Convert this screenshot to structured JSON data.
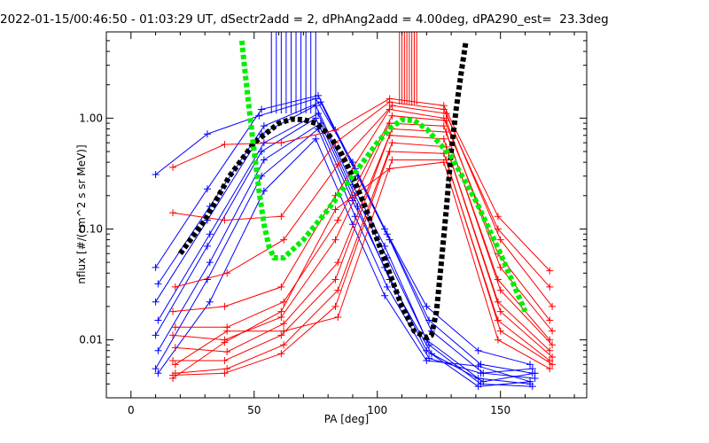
{
  "title": "2022-01-15/00:46:50 - 01:03:29 UT, dSectr2add = 2, dPhAng2add = 4.00deg, dPA290_est=  23.3deg",
  "chart_data": {
    "type": "line",
    "xlabel": "PA [deg]",
    "ylabel": "nflux [#/(cm^2 s sr MeV)]",
    "xlim": [
      -10,
      185
    ],
    "ylim": [
      0.003,
      6
    ],
    "yscale": "log",
    "x_ticks": [
      0,
      50,
      100,
      150
    ],
    "x_tick_labels": [
      "0",
      "50",
      "100",
      "150"
    ],
    "y_ticks": [
      0.01,
      0.1,
      1.0
    ],
    "y_tick_labels": [
      "0.01",
      "0.10",
      "1.00"
    ],
    "colors": {
      "blue": "#0000ff",
      "red": "#ff0000",
      "green": "#00ee00",
      "black": "#000000",
      "axes": "#000000"
    },
    "series": [
      {
        "color": "blue",
        "x": [
          10,
          31,
          52,
          75,
          90,
          103,
          120,
          141,
          162
        ],
        "y": [
          0.31,
          0.72,
          1.05,
          1.5,
          0.4,
          0.1,
          0.02,
          0.008,
          0.006
        ]
      },
      {
        "color": "blue",
        "x": [
          10,
          31,
          53,
          76,
          91,
          104,
          121,
          142,
          163
        ],
        "y": [
          0.045,
          0.23,
          1.2,
          1.6,
          0.35,
          0.09,
          0.015,
          0.006,
          0.005
        ]
      },
      {
        "color": "blue",
        "x": [
          11,
          32,
          54,
          77,
          92,
          105,
          122,
          143,
          164
        ],
        "y": [
          0.032,
          0.16,
          0.85,
          1.4,
          0.3,
          0.08,
          0.012,
          0.005,
          0.0045
        ]
      },
      {
        "color": "blue",
        "x": [
          10,
          31,
          53,
          75,
          90,
          103,
          120,
          141,
          162
        ],
        "y": [
          0.022,
          0.12,
          0.72,
          1.3,
          0.25,
          0.07,
          0.01,
          0.0045,
          0.004
        ]
      },
      {
        "color": "blue",
        "x": [
          11,
          32,
          54,
          76,
          91,
          104,
          121,
          142,
          163
        ],
        "y": [
          0.015,
          0.09,
          0.6,
          1.1,
          0.2,
          0.055,
          0.009,
          0.004,
          0.0038
        ]
      },
      {
        "color": "blue",
        "x": [
          10,
          31,
          53,
          75,
          90,
          103,
          120,
          141,
          162
        ],
        "y": [
          0.011,
          0.07,
          0.5,
          1.0,
          0.18,
          0.045,
          0.008,
          0.0038,
          0.0042
        ]
      },
      {
        "color": "blue",
        "x": [
          11,
          32,
          54,
          77,
          92,
          105,
          122,
          143,
          164
        ],
        "y": [
          0.008,
          0.05,
          0.42,
          0.9,
          0.16,
          0.035,
          0.0075,
          0.0042,
          0.005
        ]
      },
      {
        "color": "blue",
        "x": [
          10,
          31,
          53,
          76,
          91,
          104,
          121,
          142,
          163
        ],
        "y": [
          0.0055,
          0.035,
          0.3,
          0.8,
          0.13,
          0.03,
          0.0068,
          0.005,
          0.0055
        ]
      },
      {
        "color": "blue",
        "x": [
          11,
          32,
          54,
          75,
          90,
          103,
          120,
          141,
          162
        ],
        "y": [
          0.005,
          0.022,
          0.22,
          0.65,
          0.11,
          0.025,
          0.0065,
          0.0058,
          0.0042
        ]
      },
      {
        "color": "red",
        "x": [
          17,
          38,
          61,
          83,
          105,
          127,
          149,
          170
        ],
        "y": [
          0.36,
          0.58,
          0.6,
          0.78,
          1.5,
          1.3,
          0.13,
          0.042
        ]
      },
      {
        "color": "red",
        "x": [
          17,
          38,
          61,
          83,
          105,
          127,
          149,
          170
        ],
        "y": [
          0.14,
          0.12,
          0.13,
          0.6,
          1.4,
          1.2,
          0.1,
          0.03
        ]
      },
      {
        "color": "red",
        "x": [
          18,
          39,
          62,
          84,
          106,
          128,
          150,
          171
        ],
        "y": [
          0.03,
          0.04,
          0.08,
          0.38,
          1.3,
          1.1,
          0.08,
          0.02
        ]
      },
      {
        "color": "red",
        "x": [
          17,
          38,
          61,
          83,
          105,
          127,
          149,
          170
        ],
        "y": [
          0.018,
          0.02,
          0.03,
          0.2,
          1.2,
          1.0,
          0.06,
          0.015
        ]
      },
      {
        "color": "red",
        "x": [
          18,
          39,
          62,
          84,
          106,
          128,
          150,
          171
        ],
        "y": [
          0.013,
          0.013,
          0.022,
          0.12,
          1.05,
          0.95,
          0.045,
          0.012
        ]
      },
      {
        "color": "red",
        "x": [
          17,
          38,
          61,
          83,
          105,
          127,
          149,
          170
        ],
        "y": [
          0.011,
          0.01,
          0.016,
          0.08,
          0.9,
          0.85,
          0.035,
          0.01
        ]
      },
      {
        "color": "red",
        "x": [
          18,
          39,
          62,
          84,
          106,
          128,
          150,
          171
        ],
        "y": [
          0.0085,
          0.0078,
          0.014,
          0.05,
          0.8,
          0.75,
          0.028,
          0.009
        ]
      },
      {
        "color": "red",
        "x": [
          17,
          38,
          61,
          83,
          105,
          127,
          149,
          170
        ],
        "y": [
          0.0065,
          0.0065,
          0.011,
          0.035,
          0.7,
          0.65,
          0.022,
          0.008
        ]
      },
      {
        "color": "red",
        "x": [
          18,
          39,
          62,
          84,
          106,
          128,
          150,
          171
        ],
        "y": [
          0.005,
          0.0055,
          0.009,
          0.028,
          0.6,
          0.55,
          0.018,
          0.007
        ]
      },
      {
        "color": "red",
        "x": [
          17,
          38,
          61,
          83,
          105,
          127,
          149,
          170
        ],
        "y": [
          0.0048,
          0.005,
          0.0075,
          0.02,
          0.5,
          0.48,
          0.015,
          0.0065
        ]
      },
      {
        "color": "red",
        "x": [
          18,
          39,
          62,
          84,
          106,
          128,
          150,
          171
        ],
        "y": [
          0.006,
          0.012,
          0.012,
          0.016,
          0.42,
          0.42,
          0.012,
          0.006
        ]
      },
      {
        "color": "red",
        "x": [
          17,
          38,
          61,
          83,
          105,
          127,
          149,
          170
        ],
        "y": [
          0.0045,
          0.0095,
          0.018,
          0.15,
          0.35,
          0.4,
          0.01,
          0.0055
        ]
      }
    ],
    "spikes": {
      "blue": {
        "x": [
          57,
          59,
          61,
          63,
          65,
          67,
          69,
          71,
          73,
          75
        ]
      },
      "red": {
        "x": [
          109,
          110,
          111,
          112,
          113,
          114,
          115,
          116
        ]
      }
    },
    "fits": [
      {
        "color": "black",
        "style": "dashed-thick",
        "x": [
          20,
          30,
          40,
          50,
          60,
          65,
          70,
          75,
          80,
          85,
          90,
          95,
          100,
          105,
          110,
          115,
          120,
          122,
          124,
          126,
          128,
          130,
          132,
          134,
          136
        ],
        "y": [
          0.06,
          0.12,
          0.3,
          0.6,
          0.9,
          0.98,
          0.97,
          0.9,
          0.72,
          0.5,
          0.3,
          0.16,
          0.08,
          0.04,
          0.02,
          0.012,
          0.0105,
          0.011,
          0.018,
          0.05,
          0.15,
          0.5,
          1.2,
          2.5,
          5.0
        ]
      },
      {
        "color": "green",
        "style": "dashed-thick",
        "x": [
          45,
          46,
          48,
          50,
          52,
          54,
          56,
          58,
          62,
          70,
          80,
          90,
          100,
          105,
          110,
          115,
          120,
          125,
          130,
          140,
          150,
          160
        ],
        "y": [
          5.0,
          3.0,
          1.2,
          0.5,
          0.22,
          0.11,
          0.07,
          0.055,
          0.055,
          0.08,
          0.15,
          0.3,
          0.6,
          0.8,
          0.97,
          0.95,
          0.8,
          0.6,
          0.45,
          0.18,
          0.06,
          0.018
        ]
      }
    ]
  }
}
